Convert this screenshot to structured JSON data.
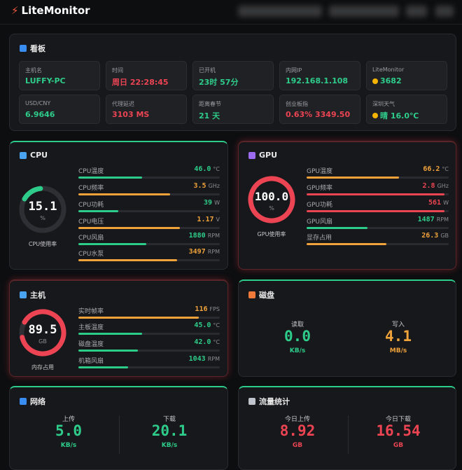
{
  "header": {
    "logo": "LiteMonitor"
  },
  "dashboard": {
    "title": "看板",
    "tiles": [
      {
        "label": "主机名",
        "value": "LUFFY-PC"
      },
      {
        "label": "时间",
        "value": "周日 22:28:45"
      },
      {
        "label": "已开机",
        "value": "23时 57分"
      },
      {
        "label": "内网IP",
        "value": "192.168.1.108"
      },
      {
        "label": "LiteMonitor",
        "value": "3682"
      },
      {
        "label": "USD/CNY",
        "value": "6.9646"
      },
      {
        "label": "代理延迟",
        "value": "3103 MS"
      },
      {
        "label": "距离春节",
        "value": "21 天"
      },
      {
        "label": "创业板指",
        "value": "0.63% 3349.50"
      },
      {
        "label": "深圳天气",
        "value": "晴 16.0℃"
      }
    ]
  },
  "cpu": {
    "title": "CPU",
    "gauge": {
      "value": "15.1",
      "unit": "%",
      "label": "CPU使用率"
    },
    "metrics": [
      {
        "label": "CPU温度",
        "value": "46.0",
        "unit": "°C"
      },
      {
        "label": "CPU频率",
        "value": "3.5",
        "unit": "GHz"
      },
      {
        "label": "CPU功耗",
        "value": "39",
        "unit": "W"
      },
      {
        "label": "CPU电压",
        "value": "1.17",
        "unit": "V"
      },
      {
        "label": "CPU风扇",
        "value": "1880",
        "unit": "RPM"
      },
      {
        "label": "CPU水泵",
        "value": "3497",
        "unit": "RPM"
      }
    ]
  },
  "gpu": {
    "title": "GPU",
    "gauge": {
      "value": "100.0",
      "unit": "%",
      "label": "GPU使用率"
    },
    "metrics": [
      {
        "label": "GPU温度",
        "value": "66.2",
        "unit": "°C"
      },
      {
        "label": "GPU频率",
        "value": "2.8",
        "unit": "GHz"
      },
      {
        "label": "GPU功耗",
        "value": "561",
        "unit": "W"
      },
      {
        "label": "GPU风扇",
        "value": "1487",
        "unit": "RPM"
      },
      {
        "label": "显存占用",
        "value": "26.3",
        "unit": "GB"
      }
    ]
  },
  "host": {
    "title": "主机",
    "gauge": {
      "value": "89.5",
      "unit": "GB",
      "label": "内存占用"
    },
    "metrics": [
      {
        "label": "实时帧率",
        "value": "116",
        "unit": "FPS"
      },
      {
        "label": "主板温度",
        "value": "45.0",
        "unit": "°C"
      },
      {
        "label": "磁盘温度",
        "value": "42.0",
        "unit": "°C"
      },
      {
        "label": "机箱风扇",
        "value": "1043",
        "unit": "RPM"
      }
    ]
  },
  "disk": {
    "title": "磁盘",
    "items": [
      {
        "label": "读取",
        "value": "0.0",
        "unit": "KB/s"
      },
      {
        "label": "写入",
        "value": "4.1",
        "unit": "MB/s"
      }
    ]
  },
  "network": {
    "title": "网络",
    "items": [
      {
        "label": "上传",
        "value": "5.0",
        "unit": "KB/s"
      },
      {
        "label": "下载",
        "value": "20.1",
        "unit": "KB/s"
      }
    ]
  },
  "traffic": {
    "title": "流量统计",
    "items": [
      {
        "label": "今日上传",
        "value": "8.92",
        "unit": "GB"
      },
      {
        "label": "今日下载",
        "value": "16.54",
        "unit": "GB"
      }
    ]
  }
}
